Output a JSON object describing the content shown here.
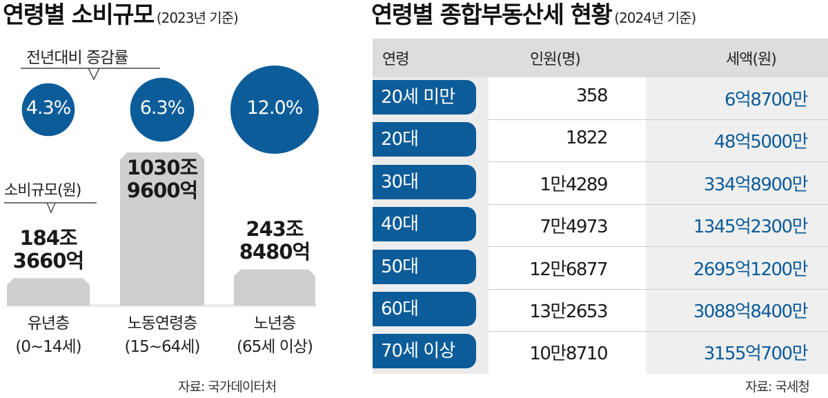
{
  "left": {
    "title": "연령별 소비규모",
    "subtitle": "(2023년 기준)",
    "growth_callout": "전년대비 증감률",
    "size_callout": "소비규모(원)",
    "source": "자료: 국가데이터처"
  },
  "right": {
    "title": "연령별 종합부동산세 현황",
    "subtitle": "(2024년 기준)",
    "source": "자료: 국세청",
    "headers": {
      "age": "연령",
      "people": "인원(명)",
      "tax": "세액(원)"
    }
  },
  "colors": {
    "accent": "#0c5c99",
    "bar": "#cfcfcf",
    "text": "#222222"
  },
  "chart_data": [
    {
      "type": "bar",
      "title": "연령별 소비규모",
      "subtitle": "(2023년 기준)",
      "categories": [
        "유년층",
        "노동연령층",
        "노년층"
      ],
      "category_ranges": [
        "(0~14세)",
        "(15~64세)",
        "(65세 이상)"
      ],
      "series": [
        {
          "name": "소비규모(원)",
          "values": [
            184.366,
            1030.96,
            243.848
          ],
          "labels": [
            "184조\n3660억",
            "1030조\n9600억",
            "243조\n8480억"
          ]
        },
        {
          "name": "전년대비 증감률",
          "values": [
            4.3,
            6.3,
            12.0
          ],
          "labels": [
            "4.3%",
            "6.3%",
            "12.0%"
          ]
        }
      ],
      "unit": "조원"
    },
    {
      "type": "table",
      "title": "연령별 종합부동산세 현황",
      "subtitle": "(2024년 기준)",
      "columns": [
        "연령",
        "인원(명)",
        "세액(원)"
      ],
      "rows": [
        [
          "20세 미만",
          "358",
          "6억8700만"
        ],
        [
          "20대",
          "1822",
          "48억5000만"
        ],
        [
          "30대",
          "1만4289",
          "334억8900만"
        ],
        [
          "40대",
          "7만4973",
          "1345억2300만"
        ],
        [
          "50대",
          "12만6877",
          "2695억1200만"
        ],
        [
          "60대",
          "13만2653",
          "3088억8400만"
        ],
        [
          "70세 이상",
          "10만8710",
          "3155억700만"
        ]
      ]
    }
  ]
}
